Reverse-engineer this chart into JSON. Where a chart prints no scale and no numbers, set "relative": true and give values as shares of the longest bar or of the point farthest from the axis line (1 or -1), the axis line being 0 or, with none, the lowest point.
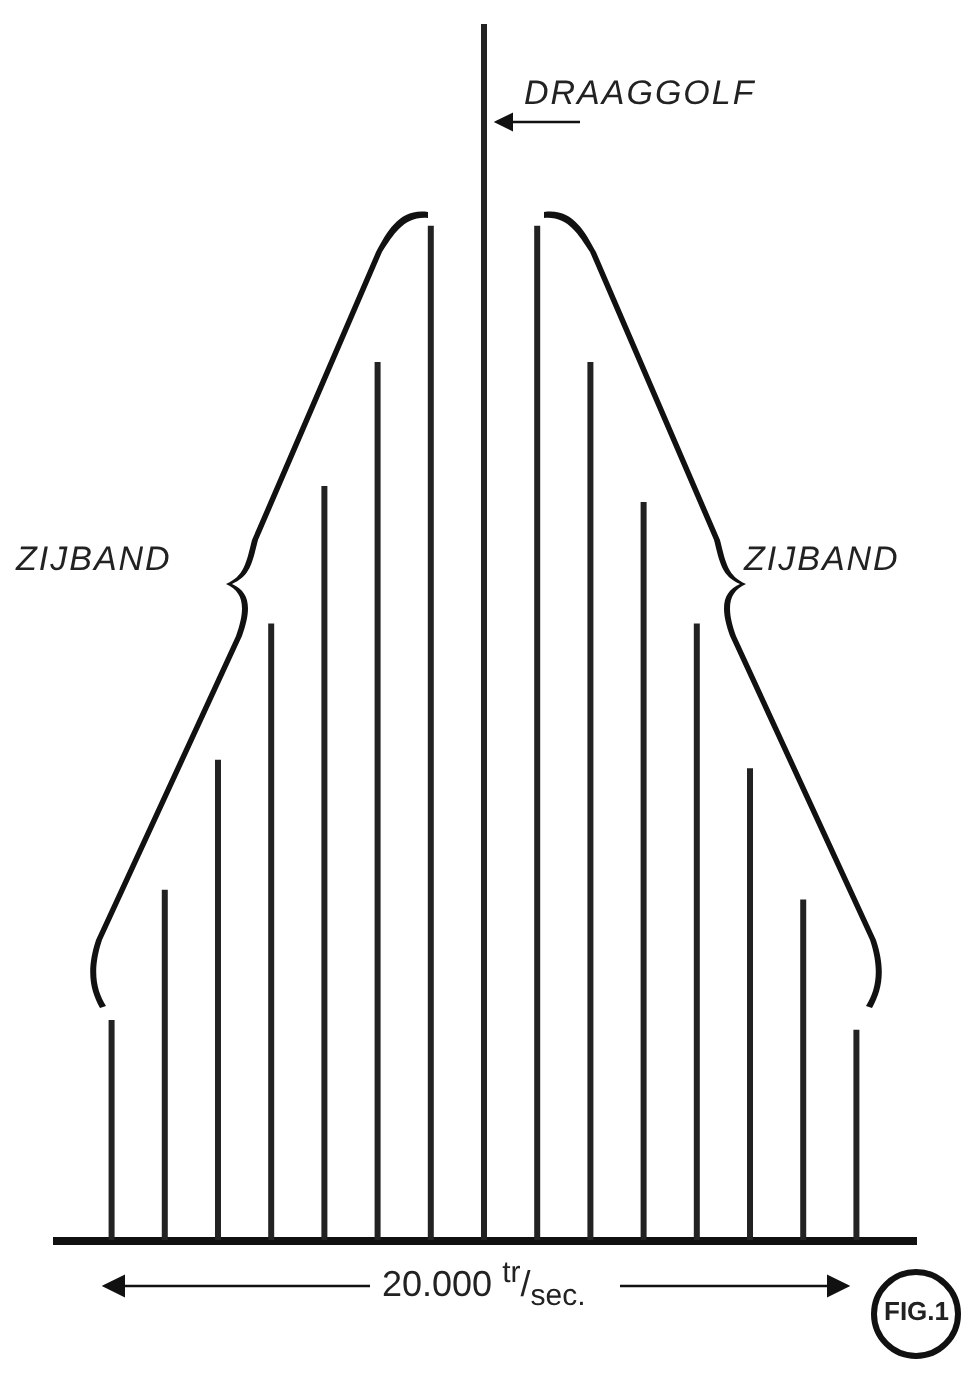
{
  "chart_data": {
    "type": "bar",
    "relative": true,
    "color": "#222222",
    "categories": [
      null,
      null,
      null,
      null,
      null,
      null,
      null,
      null,
      null,
      null,
      null,
      null,
      null,
      null,
      null
    ],
    "values": [
      0.181,
      0.288,
      0.395,
      0.507,
      0.62,
      0.722,
      0.834,
      1,
      0.834,
      0.722,
      0.607,
      0.507,
      0.388,
      0.28,
      0.173
    ],
    "annotations": [
      "DRAAGGOLF",
      "ZIJBAND",
      "ZIJBAND",
      "20.000 $^{tr}$/$_{sec.}$",
      "FIG.1"
    ]
  }
}
